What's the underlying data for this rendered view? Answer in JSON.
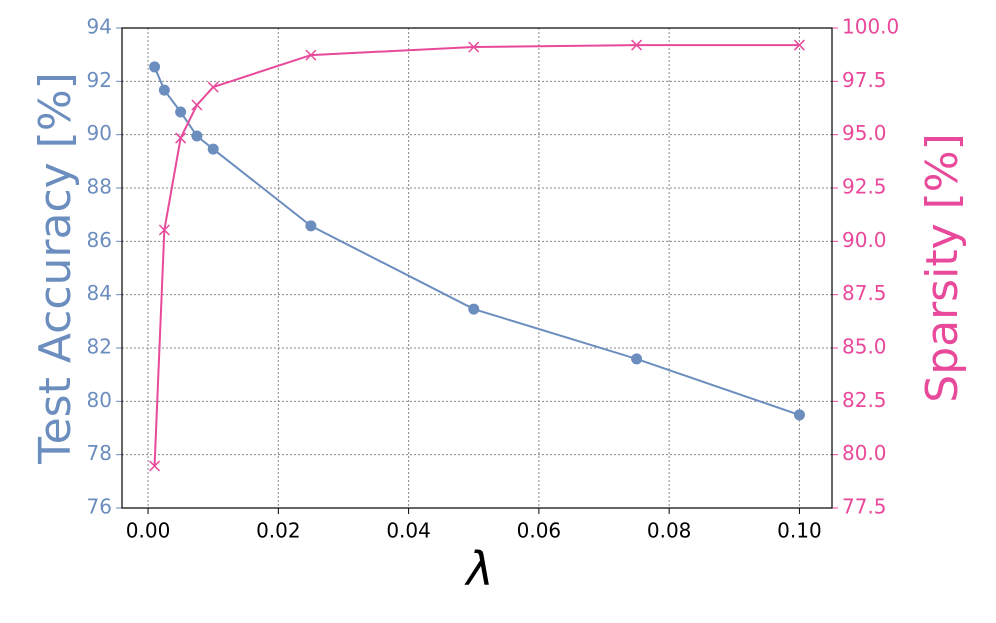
{
  "chart_data": {
    "type": "line",
    "x": [
      0.001,
      0.0025,
      0.005,
      0.0075,
      0.01,
      0.025,
      0.05,
      0.075,
      0.1
    ],
    "x_label": "λ",
    "y_label": "Test Accuracy [%]",
    "y2_label": "Sparsity [%]",
    "series": [
      {
        "color": "#6c8ebf",
        "marker": "circle",
        "values": [
          92.54,
          91.67,
          90.85,
          89.95,
          89.46,
          86.58,
          83.46,
          81.59,
          79.49
        ]
      },
      {
        "color": "#e8499a",
        "marker": "cross",
        "axis": "y2",
        "values": [
          79.47,
          90.53,
          94.84,
          96.39,
          97.23,
          98.73,
          99.11,
          99.2,
          99.2
        ]
      }
    ],
    "xlim": [
      -0.004,
      0.105
    ],
    "xticks": [
      {
        "value": 0,
        "label": "0.00"
      },
      {
        "value": 0.02,
        "label": "0.02"
      },
      {
        "value": 0.04,
        "label": "0.04"
      },
      {
        "value": 0.06,
        "label": "0.06"
      },
      {
        "value": 0.08,
        "label": "0.08"
      },
      {
        "value": 0.1,
        "label": "0.10"
      }
    ],
    "ylim": [
      76,
      94
    ],
    "yticks": [
      76,
      78,
      80,
      82,
      84,
      86,
      88,
      90,
      92,
      94
    ],
    "y2lim": [
      77.5,
      100
    ],
    "y2ticks": [
      {
        "value": 77.5,
        "label": "77.5"
      },
      {
        "value": 80,
        "label": "80.0"
      },
      {
        "value": 82.5,
        "label": "82.5"
      },
      {
        "value": 85,
        "label": "85.0"
      },
      {
        "value": 87.5,
        "label": "87.5"
      },
      {
        "value": 90,
        "label": "90.0"
      },
      {
        "value": 92.5,
        "label": "92.5"
      },
      {
        "value": 95,
        "label": "95.0"
      },
      {
        "value": 97.5,
        "label": "97.5"
      },
      {
        "value": 100,
        "label": "100.0"
      }
    ],
    "grid": true
  }
}
